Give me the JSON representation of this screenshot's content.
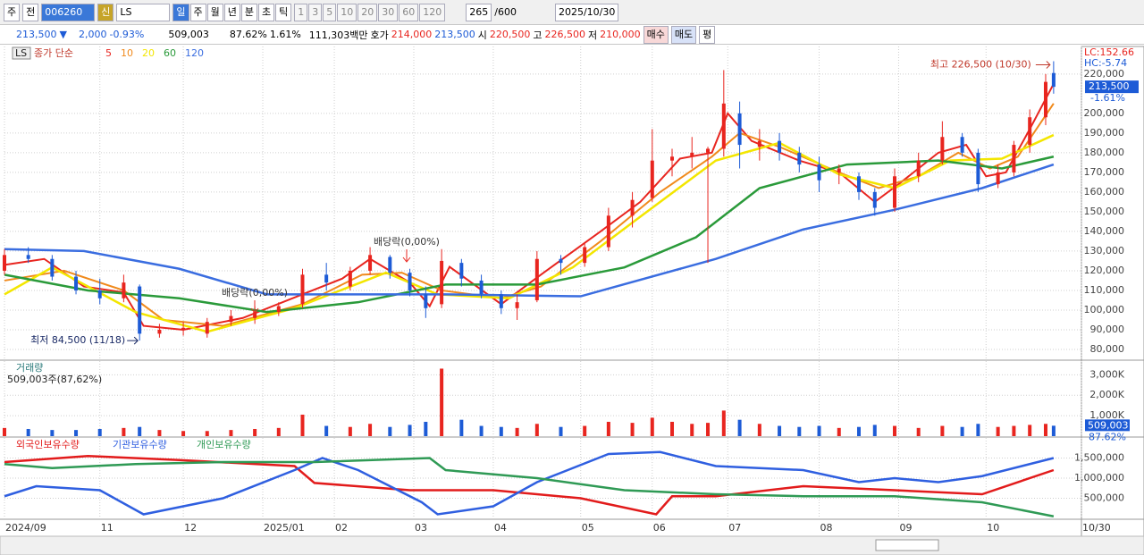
{
  "toolbar": {
    "period_unit": "주",
    "prev": "전",
    "code": "006260",
    "name": "LS",
    "credit": "신",
    "timeframes": [
      "일",
      "주",
      "월",
      "년",
      "분",
      "초",
      "틱"
    ],
    "intervals": [
      "1",
      "3",
      "5",
      "10",
      "20",
      "30",
      "60",
      "120"
    ],
    "count": "265",
    "max": "/600",
    "date": "2025/10/30"
  },
  "quote": {
    "price": "213,500",
    "arrow": "▼",
    "change": "2,000",
    "change_pct": "-0.93%",
    "volume": "509,003",
    "volume_pct": "87.62%",
    "turnover_pct": "1.61%",
    "amount": "111,303백만",
    "ask_label": "호가",
    "ask": "214,000",
    "bid": "213,500",
    "open_label": "시",
    "open": "220,500",
    "high_label": "고",
    "high": "226,500",
    "low_label": "저",
    "low": "210,000",
    "buy": "매수",
    "sell": "매도",
    "avg": "평"
  },
  "chart_data": [
    {
      "type": "candlestick",
      "name": "LS",
      "legend_title": "종가 단순",
      "indicator_lc": "LC:152.66",
      "indicator_hc": "HC:-5.74",
      "last_price_label": "213,500",
      "last_change": "-1.61%",
      "high_label": "최고 226,500 (10/30)",
      "low_label": "최저 84,500 (11/18)",
      "dividend_labels": [
        "배당락(0,00%)",
        "배당락(0,00%)"
      ],
      "up_color": "#e8251f",
      "down_color": "#1d5bd6",
      "xlim": [
        0,
        271
      ],
      "ylim": [
        75000,
        234000
      ],
      "yticks": [
        {
          "value": 80000,
          "label": "80,000"
        },
        {
          "value": 90000,
          "label": "90,000"
        },
        {
          "value": 100000,
          "label": "100,000"
        },
        {
          "value": 110000,
          "label": "110,000"
        },
        {
          "value": 120000,
          "label": "120,000"
        },
        {
          "value": 130000,
          "label": "130,000"
        },
        {
          "value": 140000,
          "label": "140,000"
        },
        {
          "value": 150000,
          "label": "150,000"
        },
        {
          "value": 160000,
          "label": "160,000"
        },
        {
          "value": 170000,
          "label": "170,000"
        },
        {
          "value": 180000,
          "label": "180,000"
        },
        {
          "value": 190000,
          "label": "190,000"
        },
        {
          "value": 200000,
          "label": "200,000"
        },
        {
          "value": 220000,
          "label": "220,000"
        }
      ],
      "x": [
        0,
        6,
        12,
        18,
        24,
        30,
        34,
        39,
        45,
        51,
        57,
        63,
        69,
        75,
        81,
        87,
        92,
        97,
        102,
        106,
        110,
        115,
        120,
        125,
        129,
        134,
        140,
        146,
        152,
        158,
        163,
        168,
        173,
        177,
        181,
        185,
        190,
        195,
        200,
        205,
        210,
        215,
        219,
        224,
        230,
        236,
        241,
        245,
        250,
        254,
        258,
        262,
        264
      ],
      "open": [
        120000,
        128000,
        126000,
        117000,
        110000,
        106000,
        112000,
        88000,
        90000,
        88000,
        94000,
        96000,
        99000,
        103000,
        118000,
        112000,
        120000,
        127000,
        119000,
        108000,
        103000,
        124000,
        115000,
        108000,
        101000,
        105000,
        126000,
        124000,
        132000,
        148000,
        157000,
        176000,
        178000,
        180000,
        182000,
        200000,
        183000,
        186000,
        180000,
        174000,
        170000,
        168000,
        160000,
        152000,
        168000,
        176000,
        188000,
        180000,
        164000,
        170000,
        184000,
        198000,
        220500
      ],
      "high": [
        131000,
        132000,
        128000,
        120000,
        116000,
        118000,
        113000,
        93000,
        94000,
        96000,
        100000,
        102000,
        104000,
        121000,
        124000,
        122000,
        132000,
        128000,
        121000,
        112000,
        131000,
        126000,
        118000,
        110000,
        108000,
        130000,
        128000,
        134000,
        152000,
        160000,
        192000,
        182000,
        188000,
        183000,
        222000,
        206000,
        192000,
        190000,
        183000,
        178000,
        174000,
        170000,
        162000,
        172000,
        180000,
        196000,
        190000,
        182000,
        174000,
        186000,
        202000,
        220000,
        226500
      ],
      "low": [
        118000,
        124000,
        115000,
        108000,
        103000,
        104000,
        84500,
        86000,
        87000,
        86000,
        92000,
        93000,
        97000,
        101000,
        110000,
        110000,
        118000,
        116000,
        107000,
        96000,
        101000,
        112000,
        106000,
        98000,
        95000,
        104000,
        118000,
        122000,
        130000,
        142000,
        155000,
        168000,
        172000,
        124000,
        178000,
        172000,
        176000,
        176000,
        170000,
        160000,
        164000,
        156000,
        148000,
        150000,
        165000,
        174000,
        178000,
        160000,
        162000,
        168000,
        180000,
        194000,
        210000
      ],
      "close": [
        128000,
        126000,
        117000,
        110000,
        106000,
        114000,
        88000,
        90000,
        91000,
        94000,
        97000,
        99000,
        102000,
        118000,
        114000,
        120000,
        128000,
        119000,
        110000,
        101000,
        125000,
        116000,
        108000,
        101000,
        104000,
        126000,
        124000,
        132000,
        148000,
        156000,
        176000,
        178000,
        180000,
        182000,
        205000,
        184000,
        186000,
        180000,
        174000,
        166000,
        172000,
        160000,
        152000,
        168000,
        176000,
        188000,
        180000,
        164000,
        170000,
        184000,
        198000,
        216000,
        213500
      ],
      "series": [
        {
          "name": "5",
          "color": "#e8251f",
          "x": [
            0,
            10,
            20,
            30,
            35,
            45,
            60,
            75,
            85,
            92,
            102,
            107,
            112,
            125,
            135,
            150,
            160,
            170,
            178,
            182,
            188,
            200,
            210,
            219,
            225,
            235,
            242,
            247,
            252,
            258,
            264
          ],
          "values": [
            123000,
            126000,
            112000,
            109000,
            92000,
            90000,
            96000,
            108000,
            116000,
            126000,
            114000,
            102000,
            122000,
            103000,
            118000,
            140000,
            155000,
            177000,
            180000,
            200000,
            186000,
            176000,
            170000,
            155000,
            164000,
            180000,
            184000,
            168000,
            170000,
            192000,
            215000
          ]
        },
        {
          "name": "10",
          "color": "#f08a1c",
          "x": [
            0,
            15,
            30,
            40,
            55,
            75,
            90,
            100,
            110,
            125,
            135,
            150,
            165,
            178,
            185,
            195,
            210,
            220,
            230,
            240,
            248,
            255,
            264
          ],
          "values": [
            115000,
            120000,
            110000,
            95000,
            92000,
            103000,
            118000,
            119000,
            110000,
            106000,
            112000,
            135000,
            160000,
            178000,
            190000,
            183000,
            170000,
            162000,
            168000,
            180000,
            172000,
            178000,
            205000
          ]
        },
        {
          "name": "20",
          "color": "#f3e600",
          "x": [
            0,
            12,
            33,
            51,
            73,
            96,
            109,
            127,
            143,
            161,
            179,
            195,
            210,
            224,
            238,
            251,
            264
          ],
          "values": [
            108000,
            121700,
            99000,
            89000,
            101000,
            119000,
            108000,
            106000,
            121700,
            149000,
            176000,
            185000,
            169000,
            162000,
            176000,
            177000,
            189000
          ]
        },
        {
          "name": "60",
          "color": "#2a9a3a",
          "x": [
            0,
            21,
            44,
            66,
            89,
            111,
            134,
            156,
            174,
            190,
            212,
            235,
            251,
            264
          ],
          "values": [
            118000,
            110000,
            106000,
            99000,
            104000,
            113000,
            113000,
            121700,
            137000,
            162000,
            174000,
            176000,
            172000,
            178000
          ]
        },
        {
          "name": "120",
          "color": "#3a6de0",
          "x": [
            0,
            20,
            44,
            66,
            111,
            145,
            179,
            201,
            224,
            246,
            264
          ],
          "values": [
            131000,
            130000,
            121000,
            108000,
            108000,
            107000,
            126000,
            141000,
            151000,
            162000,
            174000
          ]
        }
      ]
    },
    {
      "type": "bar",
      "title": "거래량",
      "subtitle": "509,003주(87,62%)",
      "last_value_label": "509,003",
      "last_ratio": "87.62%",
      "xlim": [
        0,
        271
      ],
      "ylim": [
        0,
        3670000
      ],
      "yticks": [
        {
          "value": 1000000,
          "label": "1,000K"
        },
        {
          "value": 2000000,
          "label": "2,000K"
        },
        {
          "value": 3000000,
          "label": "3,000K"
        }
      ],
      "x": [
        0,
        6,
        12,
        18,
        24,
        30,
        34,
        39,
        45,
        51,
        57,
        63,
        69,
        75,
        81,
        87,
        92,
        97,
        102,
        106,
        110,
        115,
        120,
        125,
        129,
        134,
        140,
        146,
        152,
        158,
        163,
        168,
        173,
        177,
        181,
        185,
        190,
        195,
        200,
        205,
        210,
        215,
        219,
        224,
        230,
        236,
        241,
        245,
        250,
        254,
        258,
        262,
        264
      ],
      "values": [
        400000,
        350000,
        300000,
        300000,
        350000,
        400000,
        450000,
        300000,
        250000,
        250000,
        300000,
        350000,
        400000,
        1050000,
        500000,
        450000,
        600000,
        450000,
        550000,
        700000,
        3300000,
        800000,
        500000,
        450000,
        400000,
        600000,
        450000,
        500000,
        700000,
        650000,
        900000,
        700000,
        600000,
        650000,
        1250000,
        800000,
        600000,
        500000,
        450000,
        500000,
        400000,
        450000,
        550000,
        500000,
        400000,
        500000,
        450000,
        600000,
        450000,
        500000,
        550000,
        600000,
        509003
      ]
    },
    {
      "type": "line",
      "xlim": [
        0,
        271
      ],
      "ylim": [
        0,
        2000000
      ],
      "yticks": [
        {
          "value": 500000,
          "label": "500,000"
        },
        {
          "value": 1000000,
          "label": "1,000,000"
        },
        {
          "value": 1500000,
          "label": "1,500,000"
        }
      ],
      "xticks": [
        {
          "value": 0,
          "label": "2024/09"
        },
        {
          "value": 24,
          "label": "11"
        },
        {
          "value": 45,
          "label": "12"
        },
        {
          "value": 65,
          "label": "2025/01"
        },
        {
          "value": 83,
          "label": "02"
        },
        {
          "value": 103,
          "label": "03"
        },
        {
          "value": 123,
          "label": "04"
        },
        {
          "value": 145,
          "label": "05"
        },
        {
          "value": 163,
          "label": "06"
        },
        {
          "value": 182,
          "label": "07"
        },
        {
          "value": 205,
          "label": "08"
        },
        {
          "value": 225,
          "label": "09"
        },
        {
          "value": 247,
          "label": "10"
        },
        {
          "value": 271,
          "label": "10/30"
        }
      ],
      "series": [
        {
          "name": "외국인보유수량",
          "color": "#e21b1b",
          "x": [
            0,
            21,
            44,
            73,
            78,
            102,
            123,
            145,
            164,
            168,
            179,
            201,
            224,
            246,
            264
          ],
          "values": [
            1400000,
            1550000,
            1450000,
            1300000,
            880000,
            700000,
            700000,
            500000,
            100000,
            550000,
            550000,
            800000,
            700000,
            600000,
            1200000
          ]
        },
        {
          "name": "기관보유수량",
          "color": "#2f5fe0",
          "x": [
            0,
            8,
            24,
            35,
            55,
            73,
            80,
            89,
            105,
            109,
            123,
            134,
            152,
            165,
            179,
            201,
            215,
            224,
            235,
            246,
            264
          ],
          "values": [
            550000,
            800000,
            700000,
            100000,
            500000,
            1200000,
            1500000,
            1200000,
            400000,
            100000,
            300000,
            900000,
            1600000,
            1650000,
            1300000,
            1200000,
            900000,
            1000000,
            900000,
            1050000,
            1500000
          ]
        },
        {
          "name": "개인보유수량",
          "color": "#2f9a55",
          "x": [
            0,
            12,
            33,
            55,
            78,
            107,
            111,
            134,
            156,
            179,
            201,
            224,
            246,
            264
          ],
          "values": [
            1350000,
            1250000,
            1350000,
            1400000,
            1400000,
            1500000,
            1200000,
            1000000,
            700000,
            600000,
            550000,
            550000,
            400000,
            50000
          ]
        }
      ]
    }
  ]
}
